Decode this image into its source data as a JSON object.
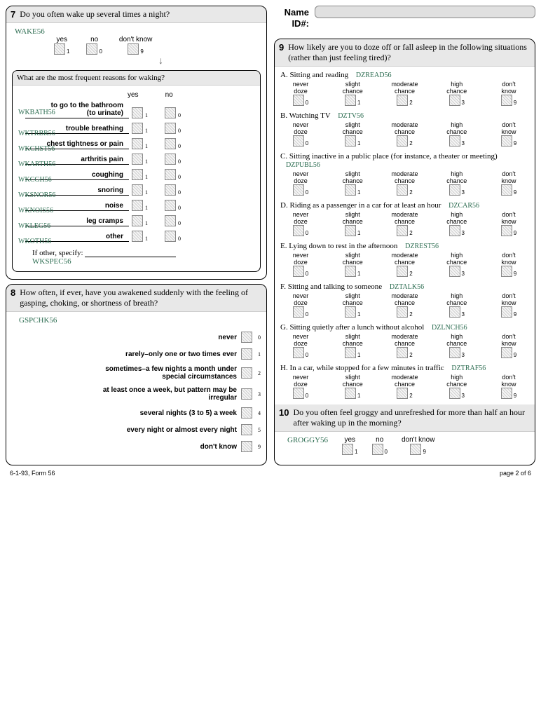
{
  "header": {
    "name_label": "Name",
    "id_label": "ID#:"
  },
  "q7": {
    "num": "7",
    "text": "Do you often wake up several times a night?",
    "code": "WAKE56",
    "opts": {
      "yes": "yes",
      "no": "no",
      "dk": "don't know"
    },
    "sub": {
      "yes": "1",
      "no": "0",
      "dk": "9"
    },
    "inner_title": "What are the most frequent reasons for waking?",
    "yn_head": {
      "yes": "yes",
      "no": "no"
    },
    "reasons": [
      {
        "label": "to go to the bathroom\n(to urinate)",
        "code": "WKBATH56"
      },
      {
        "label": "trouble breathing",
        "code": "WKTRBR56"
      },
      {
        "label": "chest tightness or pain",
        "code": "WKCHST56"
      },
      {
        "label": "arthritis pain",
        "code": "WKARTH56"
      },
      {
        "label": "coughing",
        "code": "WKCGH56"
      },
      {
        "label": "snoring",
        "code": "WKSNOR56"
      },
      {
        "label": "noise",
        "code": "WKNOIS56"
      },
      {
        "label": "leg cramps",
        "code": "WKLEG56"
      },
      {
        "label": "other",
        "code": "WKOTH56"
      }
    ],
    "specify_label": "If other, specify:",
    "specify_code": "WKSPEC56"
  },
  "q8": {
    "num": "8",
    "text": "How often, if ever, have you awakened suddenly with the feeling of gasping, choking, or shortness of breath?",
    "code": "GSPCHK56",
    "opts": [
      {
        "label": "never",
        "sub": "0"
      },
      {
        "label": "rarely–only one or two times ever",
        "sub": "1"
      },
      {
        "label": "sometimes–a few nights a month under special circumstances",
        "sub": "2"
      },
      {
        "label": "at least once a week, but pattern may be irregular",
        "sub": "3"
      },
      {
        "label": "several nights (3 to 5) a week",
        "sub": "4"
      },
      {
        "label": "every night or almost every night",
        "sub": "5"
      },
      {
        "label": "don't know",
        "sub": "9"
      }
    ]
  },
  "q9": {
    "num": "9",
    "text": "How likely are you to doze off or fall asleep in the following situations (rather than just feeling tired)?",
    "scale": [
      {
        "l1": "never",
        "l2": "doze",
        "sub": "0"
      },
      {
        "l1": "slight",
        "l2": "chance",
        "sub": "1"
      },
      {
        "l1": "moderate",
        "l2": "chance",
        "sub": "2"
      },
      {
        "l1": "high",
        "l2": "chance",
        "sub": "3"
      },
      {
        "l1": "don't",
        "l2": "know",
        "sub": "9"
      }
    ],
    "situations": [
      {
        "letter": "A.",
        "label": "Sitting and reading",
        "code": "DZREAD56"
      },
      {
        "letter": "B.",
        "label": "Watching TV",
        "code": "DZTV56"
      },
      {
        "letter": "C.",
        "label": "Sitting inactive in a public place (for instance, a theater or meeting)",
        "code": "DZPUBL56"
      },
      {
        "letter": "D.",
        "label": "Riding as a passenger in a car for at least an hour",
        "code": "DZCAR56"
      },
      {
        "letter": "E.",
        "label": "Lying down to rest in the afternoon",
        "code": "DZREST56"
      },
      {
        "letter": "F.",
        "label": "Sitting and talking to someone",
        "code": "DZTALK56"
      },
      {
        "letter": "G.",
        "label": "Sitting quietly after a lunch without alcohol",
        "code": "DZLNCH56"
      },
      {
        "letter": "H.",
        "label": "In a car, while stopped for a few minutes in traffic",
        "code": "DZTRAF56"
      }
    ]
  },
  "q10": {
    "num": "10",
    "text": "Do you often feel groggy and unrefreshed for more than half an hour after waking up in the morning?",
    "code": "GROGGY56",
    "opts": {
      "yes": "yes",
      "no": "no",
      "dk": "don't know"
    },
    "sub": {
      "yes": "1",
      "no": "0",
      "dk": "9"
    }
  },
  "footer": {
    "left": "6-1-93, Form 56",
    "right": "page 2 of 6"
  }
}
